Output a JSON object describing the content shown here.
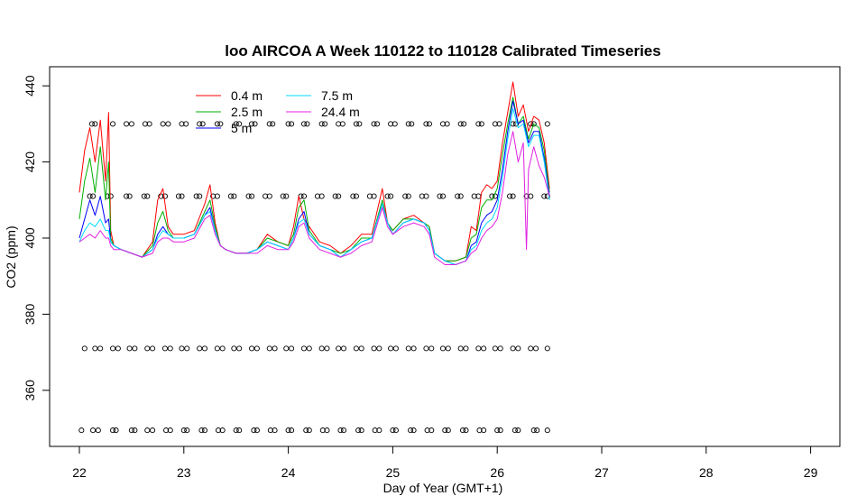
{
  "chart_data": {
    "type": "line",
    "title": "loo AIRCOA A  Week 110122 to 110128  Calibrated Timeseries",
    "xlabel": "Day of Year (GMT+1)",
    "ylabel": "CO2 (ppm)",
    "xlim": [
      22,
      29
    ],
    "ylim": [
      345,
      446
    ],
    "x_ticks": [
      "22",
      "23",
      "24",
      "25",
      "26",
      "27",
      "28",
      "29"
    ],
    "y_ticks": [
      "360",
      "380",
      "400",
      "420",
      "440"
    ],
    "grid": false,
    "legend_position": "top-left",
    "series": [
      {
        "name": "0.4 m",
        "color": "#ff0000",
        "x": [
          22.0,
          22.05,
          22.1,
          22.15,
          22.2,
          22.25,
          22.28,
          22.3,
          22.33,
          22.4,
          22.5,
          22.6,
          22.7,
          22.75,
          22.8,
          22.85,
          22.9,
          23.0,
          23.1,
          23.2,
          23.25,
          23.3,
          23.35,
          23.4,
          23.5,
          23.6,
          23.7,
          23.8,
          23.9,
          24.0,
          24.05,
          24.1,
          24.15,
          24.2,
          24.3,
          24.4,
          24.5,
          24.6,
          24.7,
          24.8,
          24.9,
          24.95,
          25.0,
          25.1,
          25.2,
          25.3,
          25.35,
          25.4,
          25.5,
          25.6,
          25.7,
          25.75,
          25.8,
          25.85,
          25.9,
          25.95,
          26.0,
          26.05,
          26.1,
          26.15,
          26.2,
          26.25,
          26.3,
          26.35,
          26.4,
          26.45,
          26.5
        ],
        "y": [
          412,
          423,
          429,
          420,
          431,
          415,
          433,
          402,
          398,
          397,
          396,
          395,
          399,
          410,
          413,
          403,
          401,
          401,
          402,
          409,
          414,
          404,
          398,
          397,
          396,
          396,
          397,
          401,
          399,
          398,
          403,
          411,
          405,
          403,
          399,
          398,
          396,
          398,
          401,
          401,
          413,
          404,
          402,
          405,
          406,
          404,
          403,
          396,
          394,
          394,
          395,
          403,
          402,
          412,
          414,
          413,
          415,
          425,
          433,
          441,
          432,
          435,
          428,
          432,
          431,
          425,
          413
        ]
      },
      {
        "name": "2.5 m",
        "color": "#00b000",
        "x": [
          22.0,
          22.05,
          22.1,
          22.15,
          22.2,
          22.25,
          22.28,
          22.3,
          22.33,
          22.4,
          22.5,
          22.6,
          22.7,
          22.75,
          22.8,
          22.85,
          22.9,
          23.0,
          23.1,
          23.2,
          23.25,
          23.3,
          23.35,
          23.4,
          23.5,
          23.6,
          23.7,
          23.8,
          23.9,
          24.0,
          24.05,
          24.1,
          24.15,
          24.2,
          24.3,
          24.4,
          24.5,
          24.6,
          24.7,
          24.8,
          24.9,
          24.95,
          25.0,
          25.1,
          25.2,
          25.3,
          25.35,
          25.4,
          25.5,
          25.6,
          25.7,
          25.75,
          25.8,
          25.85,
          25.9,
          25.95,
          26.0,
          26.05,
          26.1,
          26.15,
          26.2,
          26.25,
          26.3,
          26.35,
          26.4,
          26.45,
          26.5
        ],
        "y": [
          405,
          415,
          421,
          412,
          424,
          410,
          420,
          400,
          398,
          397,
          396,
          395,
          398,
          404,
          407,
          402,
          400,
          400,
          401,
          407,
          410,
          403,
          398,
          397,
          396,
          396,
          397,
          400,
          399,
          398,
          401,
          408,
          410,
          402,
          398,
          397,
          396,
          397,
          400,
          400,
          410,
          404,
          402,
          405,
          405,
          404,
          403,
          396,
          394,
          394,
          395,
          400,
          401,
          408,
          410,
          410,
          413,
          422,
          430,
          437,
          430,
          432,
          426,
          430,
          429,
          423,
          412
        ]
      },
      {
        "name": "5 m",
        "color": "#0000ff",
        "x": [
          22.0,
          22.05,
          22.1,
          22.15,
          22.2,
          22.25,
          22.28,
          22.3,
          22.33,
          22.4,
          22.5,
          22.6,
          22.7,
          22.75,
          22.8,
          22.85,
          22.9,
          23.0,
          23.1,
          23.2,
          23.25,
          23.3,
          23.35,
          23.4,
          23.5,
          23.6,
          23.7,
          23.8,
          23.9,
          24.0,
          24.05,
          24.1,
          24.15,
          24.2,
          24.3,
          24.4,
          24.5,
          24.6,
          24.7,
          24.8,
          24.9,
          24.95,
          25.0,
          25.1,
          25.2,
          25.3,
          25.35,
          25.4,
          25.5,
          25.6,
          25.7,
          25.75,
          25.8,
          25.85,
          25.9,
          25.95,
          26.0,
          26.05,
          26.1,
          26.15,
          26.2,
          26.25,
          26.3,
          26.35,
          26.4,
          26.45,
          26.5
        ],
        "y": [
          400,
          405,
          410,
          406,
          411,
          404,
          405,
          399,
          398,
          397,
          396,
          395,
          397,
          401,
          403,
          401,
          400,
          400,
          401,
          406,
          408,
          402,
          398,
          397,
          396,
          396,
          397,
          399,
          398,
          397,
          400,
          405,
          407,
          401,
          398,
          397,
          395,
          397,
          399,
          400,
          409,
          404,
          401,
          404,
          405,
          404,
          402,
          396,
          394,
          393,
          394,
          398,
          399,
          404,
          406,
          407,
          410,
          418,
          428,
          436,
          430,
          431,
          425,
          428,
          428,
          421,
          411
        ]
      },
      {
        "name": "7.5 m",
        "color": "#00d8ff",
        "x": [
          22.0,
          22.05,
          22.1,
          22.15,
          22.2,
          22.25,
          22.28,
          22.3,
          22.33,
          22.4,
          22.5,
          22.6,
          22.7,
          22.75,
          22.8,
          22.85,
          22.9,
          23.0,
          23.1,
          23.2,
          23.25,
          23.3,
          23.35,
          23.4,
          23.5,
          23.6,
          23.7,
          23.8,
          23.9,
          24.0,
          24.05,
          24.1,
          24.15,
          24.2,
          24.3,
          24.4,
          24.5,
          24.6,
          24.7,
          24.8,
          24.9,
          24.95,
          25.0,
          25.1,
          25.2,
          25.3,
          25.35,
          25.4,
          25.5,
          25.6,
          25.7,
          25.75,
          25.8,
          25.85,
          25.9,
          25.95,
          26.0,
          26.05,
          26.1,
          26.15,
          26.2,
          26.25,
          26.3,
          26.35,
          26.4,
          26.45,
          26.5
        ],
        "y": [
          399,
          402,
          404,
          403,
          405,
          402,
          402,
          399,
          398,
          397,
          396,
          395,
          397,
          400,
          402,
          401,
          400,
          400,
          401,
          406,
          407,
          402,
          398,
          397,
          396,
          396,
          397,
          399,
          398,
          397,
          400,
          404,
          405,
          401,
          398,
          397,
          395,
          397,
          399,
          400,
          409,
          404,
          401,
          404,
          405,
          404,
          402,
          396,
          394,
          393,
          394,
          397,
          398,
          402,
          404,
          405,
          408,
          416,
          426,
          434,
          429,
          430,
          424,
          427,
          427,
          420,
          410
        ]
      },
      {
        "name": "24.4 m",
        "color": "#e020e0",
        "x": [
          22.0,
          22.05,
          22.1,
          22.15,
          22.2,
          22.25,
          22.28,
          22.3,
          22.33,
          22.4,
          22.5,
          22.6,
          22.7,
          22.75,
          22.8,
          22.85,
          22.9,
          23.0,
          23.1,
          23.2,
          23.25,
          23.3,
          23.35,
          23.4,
          23.5,
          23.6,
          23.7,
          23.8,
          23.9,
          24.0,
          24.05,
          24.1,
          24.15,
          24.2,
          24.3,
          24.4,
          24.5,
          24.6,
          24.7,
          24.8,
          24.9,
          24.95,
          25.0,
          25.1,
          25.2,
          25.3,
          25.35,
          25.4,
          25.5,
          25.6,
          25.7,
          25.75,
          25.8,
          25.85,
          25.9,
          25.95,
          26.0,
          26.05,
          26.1,
          26.15,
          26.2,
          26.25,
          26.28,
          26.3,
          26.35,
          26.4,
          26.45,
          26.5
        ],
        "y": [
          399,
          400,
          401,
          400,
          402,
          400,
          400,
          398,
          397,
          397,
          396,
          395,
          396,
          399,
          400,
          400,
          399,
          399,
          400,
          405,
          406,
          401,
          398,
          397,
          396,
          396,
          396,
          398,
          397,
          397,
          399,
          403,
          404,
          400,
          397,
          396,
          395,
          396,
          398,
          399,
          408,
          403,
          401,
          403,
          404,
          403,
          401,
          395,
          393,
          393,
          394,
          396,
          397,
          400,
          402,
          403,
          405,
          412,
          422,
          428,
          420,
          425,
          397,
          418,
          424,
          419,
          416,
          411
        ]
      }
    ],
    "reference_points": [
      {
        "y": 430,
        "x": [
          22.12,
          22.15,
          22.32,
          22.45,
          22.5,
          22.63,
          22.67,
          22.8,
          22.85,
          22.98,
          23.02,
          23.15,
          23.18,
          23.32,
          23.35,
          23.5,
          23.53,
          23.65,
          23.68,
          23.82,
          23.85,
          24.0,
          24.03,
          24.15,
          24.18,
          24.32,
          24.35,
          24.48,
          24.52,
          24.65,
          24.68,
          24.82,
          24.85,
          24.98,
          25.02,
          25.15,
          25.18,
          25.32,
          25.35,
          25.48,
          25.52,
          25.65,
          25.68,
          25.82,
          25.85,
          25.98,
          26.02,
          26.15,
          26.18,
          26.32,
          26.35,
          26.48
        ]
      },
      {
        "y": 411,
        "x": [
          22.1,
          22.13,
          22.27,
          22.3,
          22.45,
          22.48,
          22.62,
          22.65,
          22.78,
          22.82,
          22.95,
          22.98,
          23.12,
          23.15,
          23.28,
          23.32,
          23.45,
          23.48,
          23.62,
          23.65,
          23.78,
          23.82,
          23.95,
          23.98,
          24.12,
          24.15,
          24.28,
          24.32,
          24.45,
          24.48,
          24.62,
          24.65,
          24.78,
          24.82,
          24.95,
          24.98,
          25.12,
          25.15,
          25.28,
          25.32,
          25.45,
          25.48,
          25.62,
          25.65,
          25.78,
          25.82,
          25.95,
          25.98,
          26.12,
          26.15,
          26.28,
          26.32,
          26.45,
          26.48
        ]
      },
      {
        "y": 371,
        "x": [
          22.05,
          22.15,
          22.2,
          22.32,
          22.37,
          22.48,
          22.53,
          22.65,
          22.7,
          22.82,
          22.87,
          22.98,
          23.03,
          23.15,
          23.2,
          23.32,
          23.37,
          23.48,
          23.53,
          23.65,
          23.7,
          23.82,
          23.87,
          23.98,
          24.03,
          24.15,
          24.2,
          24.32,
          24.37,
          24.48,
          24.53,
          24.65,
          24.7,
          24.82,
          24.87,
          24.98,
          25.03,
          25.15,
          25.2,
          25.32,
          25.37,
          25.48,
          25.53,
          25.65,
          25.7,
          25.82,
          25.87,
          25.98,
          26.03,
          26.15,
          26.2,
          26.32,
          26.37,
          26.48
        ]
      },
      {
        "y": 349.5,
        "x": [
          22.02,
          22.13,
          22.18,
          22.32,
          22.35,
          22.5,
          22.53,
          22.65,
          22.7,
          22.83,
          22.87,
          23.0,
          23.03,
          23.17,
          23.2,
          23.33,
          23.37,
          23.5,
          23.53,
          23.67,
          23.7,
          23.83,
          23.87,
          24.0,
          24.03,
          24.17,
          24.2,
          24.33,
          24.37,
          24.5,
          24.53,
          24.67,
          24.7,
          24.83,
          24.87,
          25.0,
          25.03,
          25.17,
          25.2,
          25.33,
          25.37,
          25.5,
          25.53,
          25.67,
          25.7,
          25.83,
          25.87,
          26.0,
          26.03,
          26.17,
          26.2,
          26.35,
          26.38,
          26.48
        ]
      }
    ]
  }
}
